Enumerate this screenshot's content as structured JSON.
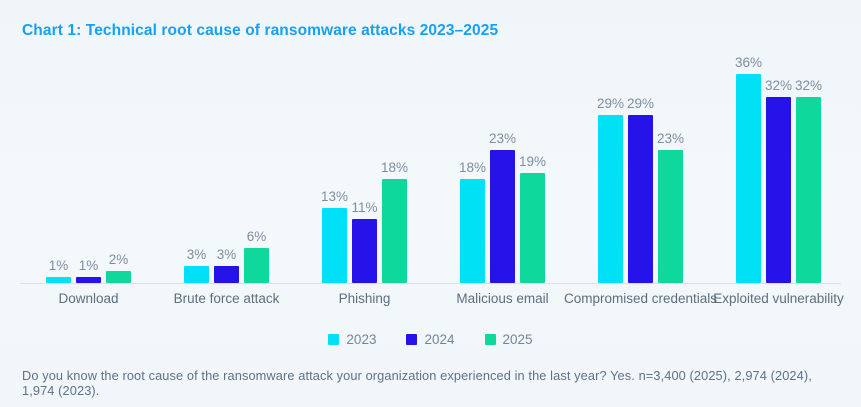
{
  "title": "Chart 1: Technical root cause of ransomware attacks 2023–2025",
  "footnote": "Do you know the root cause of the ransomware attack your organization experienced in the last year? Yes.  n=3,400 (2025), 2,974 (2024), 1,974 (2023).",
  "colors": {
    "title_accent": "#18a0f2",
    "background": "#f2f7fa",
    "axis_line": "#d9e2ea",
    "value_label": "#7e8da2",
    "category_label": "#5b6e82"
  },
  "chart_data": {
    "type": "bar",
    "title": "Chart 1: Technical root cause of ransomware attacks 2023–2025",
    "categories": [
      "Download",
      "Brute force attack",
      "Phishing",
      "Malicious email",
      "Compromised credentials",
      "Exploited vulnerability"
    ],
    "series": [
      {
        "name": "2023",
        "color": "#00e1f6",
        "values": [
          1,
          3,
          13,
          18,
          29,
          36
        ]
      },
      {
        "name": "2024",
        "color": "#2513ea",
        "values": [
          1,
          3,
          11,
          23,
          29,
          32
        ]
      },
      {
        "name": "2025",
        "color": "#0fd89d",
        "values": [
          2,
          6,
          18,
          19,
          23,
          32
        ]
      }
    ],
    "value_suffix": "%",
    "xlabel": "",
    "ylabel": "",
    "ylim": [
      0,
      40
    ],
    "grid": false,
    "legend_position": "bottom",
    "value_labels_shown": true
  }
}
